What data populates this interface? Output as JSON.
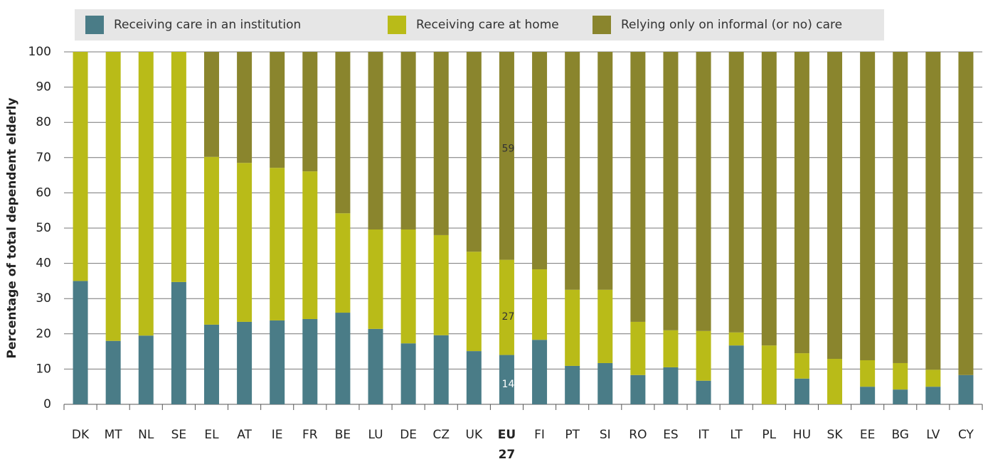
{
  "chart_data": {
    "type": "stacked_bar",
    "y_label": "Percentage of total dependent elderly",
    "categories": [
      "DK",
      "MT",
      "NL",
      "SE",
      "EL",
      "AT",
      "IE",
      "FR",
      "BE",
      "LU",
      "DE",
      "CZ",
      "UK",
      "EU 27",
      "FI",
      "PT",
      "SI",
      "RO",
      "ES",
      "IT",
      "LT",
      "PL",
      "HU",
      "SK",
      "EE",
      "BG",
      "LV",
      "CY"
    ],
    "series": [
      {
        "name": "Receiving care in an institution",
        "color": "#4a7c87",
        "values": [
          35,
          18,
          19.5,
          34.7,
          22.6,
          23.4,
          23.8,
          24.2,
          26,
          21.4,
          17.3,
          19.6,
          15.1,
          14,
          18.3,
          10.9,
          11.7,
          8.3,
          10.5,
          6.7,
          16.7,
          0,
          7.3,
          0,
          5,
          4.2,
          5,
          8.3
        ],
        "value_labels": [
          null,
          null,
          null,
          null,
          null,
          null,
          null,
          null,
          null,
          null,
          null,
          null,
          null,
          "14",
          null,
          null,
          null,
          null,
          null,
          null,
          null,
          null,
          null,
          null,
          null,
          null,
          null,
          null
        ]
      },
      {
        "name": "Receiving care at home",
        "color": "#b9bb18",
        "values": [
          65,
          82,
          80.5,
          65.3,
          47.6,
          45.1,
          43.3,
          41.9,
          28.2,
          28.2,
          32.3,
          28.4,
          28.2,
          27,
          20,
          21.6,
          20.8,
          15.1,
          10.5,
          14.1,
          3.7,
          16.7,
          7.2,
          12.9,
          7.5,
          7.5,
          4.8,
          0
        ],
        "value_labels": [
          null,
          null,
          null,
          null,
          null,
          null,
          null,
          null,
          null,
          null,
          null,
          null,
          null,
          "27",
          null,
          null,
          null,
          null,
          null,
          null,
          null,
          null,
          null,
          null,
          null,
          null,
          null,
          null
        ]
      },
      {
        "name": "Relying only on informal (or no) care",
        "color": "#8a852d",
        "values": [
          0,
          0,
          0,
          0,
          29.8,
          31.5,
          32.9,
          33.9,
          45.8,
          50.4,
          50.4,
          52,
          56.7,
          59,
          61.7,
          67.5,
          67.5,
          76.6,
          79,
          79.2,
          79.6,
          83.3,
          85.5,
          87.1,
          87.5,
          88.3,
          90.2,
          91.7
        ],
        "value_labels": [
          null,
          null,
          null,
          null,
          null,
          null,
          null,
          null,
          null,
          null,
          null,
          null,
          null,
          "59",
          null,
          null,
          null,
          null,
          null,
          null,
          null,
          null,
          null,
          null,
          null,
          null,
          null,
          null
        ]
      }
    ],
    "ylim": [
      0,
      100
    ],
    "yticks": [
      0,
      10,
      20,
      30,
      40,
      50,
      60,
      70,
      80,
      90,
      100
    ],
    "grid": true
  }
}
